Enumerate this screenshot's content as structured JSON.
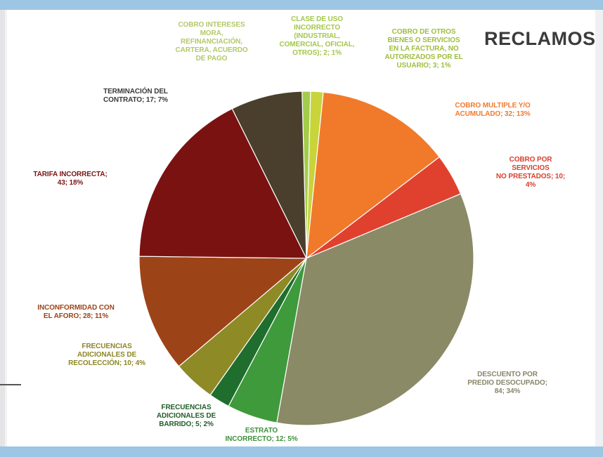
{
  "colors": {
    "frame": "#9cc6e4",
    "title": "#3b3b3b"
  },
  "chart_data": {
    "type": "pie",
    "title": "RECLAMOS",
    "slices": [
      {
        "label": "CLASE DE USO INCORRECTO (INDUSTRIAL, COMERCIAL, OFICIAL, OTROS)",
        "count": 2,
        "percent": 1,
        "color": "#a3cc4a",
        "text": "CLASE DE USO\nINCORRECTO\n(INDUSTRIAL,\nCOMERCIAL, OFICIAL,\nOTROS); 2; 1%",
        "text_color": "#a3c74a"
      },
      {
        "label": "COBRO DE OTROS BIENES O SERVICIOS EN LA FACTURA, NO AUTORIZADOS POR EL USUARIO",
        "count": 3,
        "percent": 1,
        "color": "#c8d43a",
        "text": "COBRO DE OTROS\nBIENES O SERVICIOS\nEN LA FACTURA, NO\nAUTORIZADOS POR EL\nUSUARIO; 3; 1%",
        "text_color": "#9cbf3c"
      },
      {
        "label": "COBRO MULTIPLE Y/O ACUMULADO",
        "count": 32,
        "percent": 13,
        "color": "#f07a2a",
        "text": "COBRO MULTIPLE Y/O\nACUMULADO; 32; 13%",
        "text_color": "#ef7b30"
      },
      {
        "label": "COBRO POR SERVICIOS NO PRESTADOS",
        "count": 10,
        "percent": 4,
        "color": "#e0412e",
        "text": "COBRO POR SERVICIOS\nNO PRESTADOS; 10;\n4%",
        "text_color": "#d8402e"
      },
      {
        "label": "DESCUENTO POR PREDIO DESOCUPADO",
        "count": 84,
        "percent": 34,
        "color": "#8b8a66",
        "text": "DESCUENTO POR\nPREDIO DESOCUPADO;\n84; 34%",
        "text_color": "#87866a"
      },
      {
        "label": "ESTRATO INCORRECTO",
        "count": 12,
        "percent": 5,
        "color": "#3f9a3c",
        "text": "ESTRATO\nINCORRECTO; 12; 5%",
        "text_color": "#3f8f3c"
      },
      {
        "label": "FRECUENCIAS ADICIONALES DE BARRIDO",
        "count": 5,
        "percent": 2,
        "color": "#1f6e2e",
        "text": "FRECUENCIAS\nADICIONALES DE\nBARRIDO; 5; 2%",
        "text_color": "#1f5e2a"
      },
      {
        "label": "FRECUENCIAS ADICIONALES DE RECOLECCIÓN",
        "count": 10,
        "percent": 4,
        "color": "#8e8a26",
        "text": "FRECUENCIAS\nADICIONALES DE\nRECOLECCIÓN; 10; 4%",
        "text_color": "#8b8626"
      },
      {
        "label": "INCONFORMIDAD CON EL AFORO",
        "count": 28,
        "percent": 11,
        "color": "#9c4418",
        "text": "INCONFORMIDAD CON\nEL AFORO; 28; 11%",
        "text_color": "#9c4418"
      },
      {
        "label": "TARIFA INCORRECTA",
        "count": 43,
        "percent": 18,
        "color": "#7a1212",
        "text": "TARIFA INCORRECTA;\n43; 18%",
        "text_color": "#7a1414"
      },
      {
        "label": "TERMINACIÓN DEL CONTRATO",
        "count": 17,
        "percent": 7,
        "color": "#4a3f2c",
        "text": "TERMINACIÓN DEL\nCONTRATO; 17; 7%",
        "text_color": "#3a3a3a"
      },
      {
        "label": "COBRO INTERESES MORA, REFINANCIACIÓN, CARTERA, ACUERDO DE PAGO",
        "count": 0,
        "percent": 0,
        "color": "#8fcf4a",
        "text": "COBRO INTERESES\nMORA,\nREFINANCIACIÓN,\nCARTERA, ACUERDO\nDE PAGO",
        "text_color": "#b3c86a"
      }
    ]
  }
}
